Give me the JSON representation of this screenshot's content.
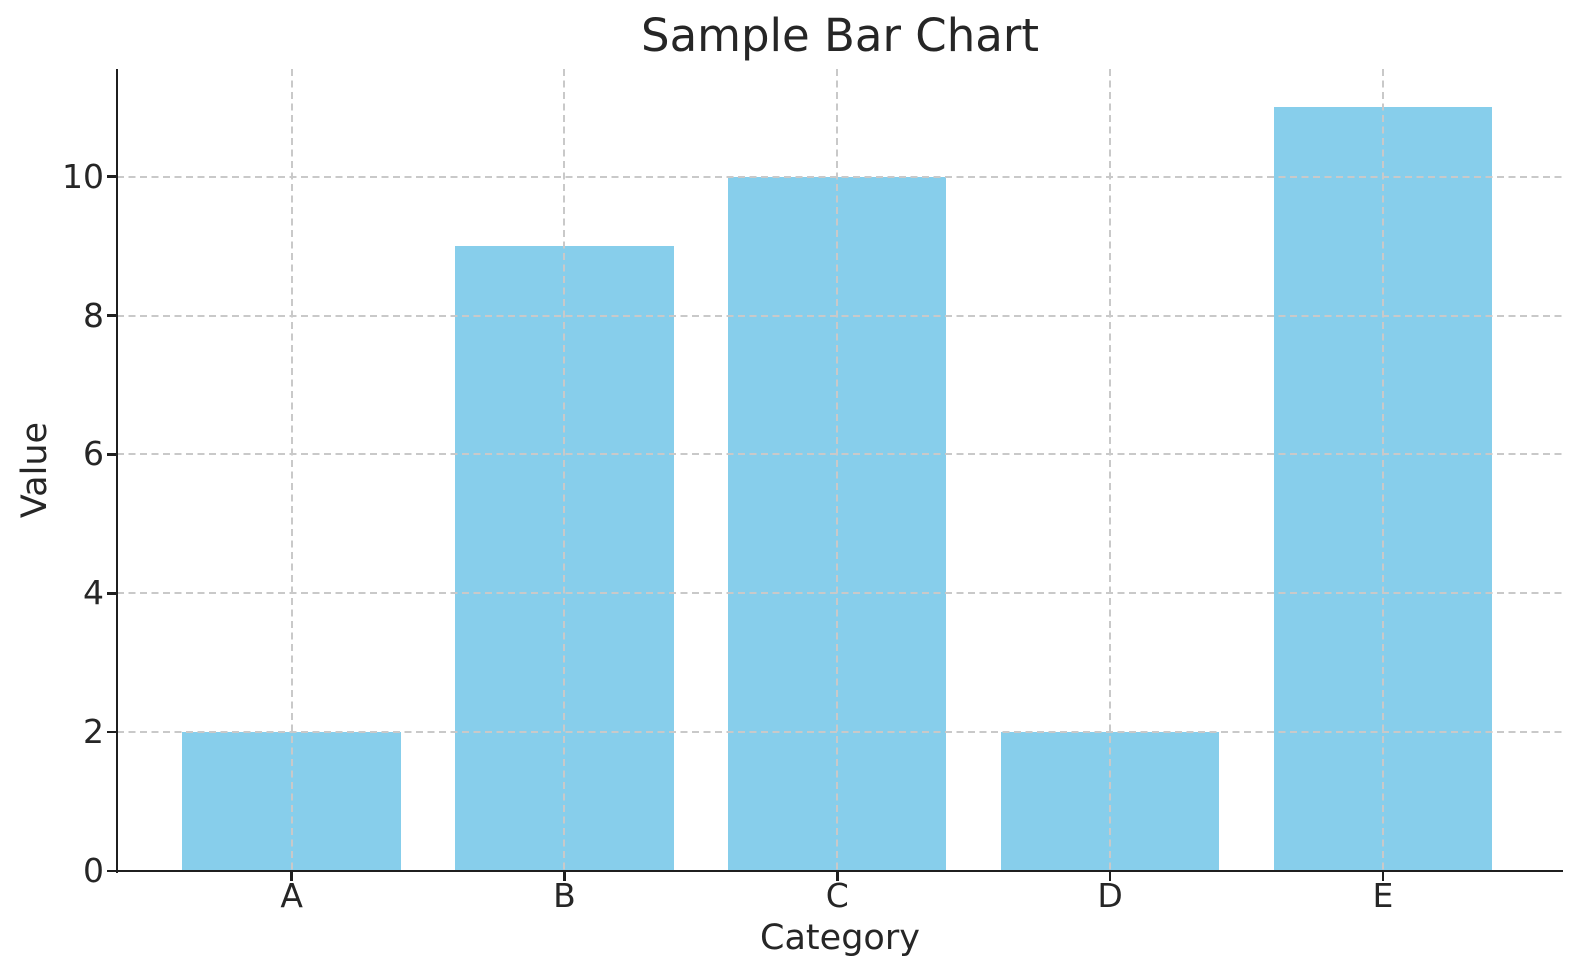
{
  "chart_data": {
    "type": "bar",
    "title": "Sample Bar Chart",
    "xlabel": "Category",
    "ylabel": "Value",
    "categories": [
      "A",
      "B",
      "C",
      "D",
      "E"
    ],
    "values": [
      2,
      9,
      10,
      2,
      11
    ],
    "yticks": [
      0,
      2,
      4,
      6,
      8,
      10
    ],
    "ylim": [
      0,
      11.55
    ],
    "bar_color": "#87CEEB",
    "grid": true,
    "grid_style": "dashed",
    "grid_color": "#c9c9c9",
    "grid_on_top_of_bars": true,
    "axis_color": "#1f1f1f",
    "text_color": "#262626",
    "legend_position": "none",
    "background_color": "#ffffff"
  }
}
